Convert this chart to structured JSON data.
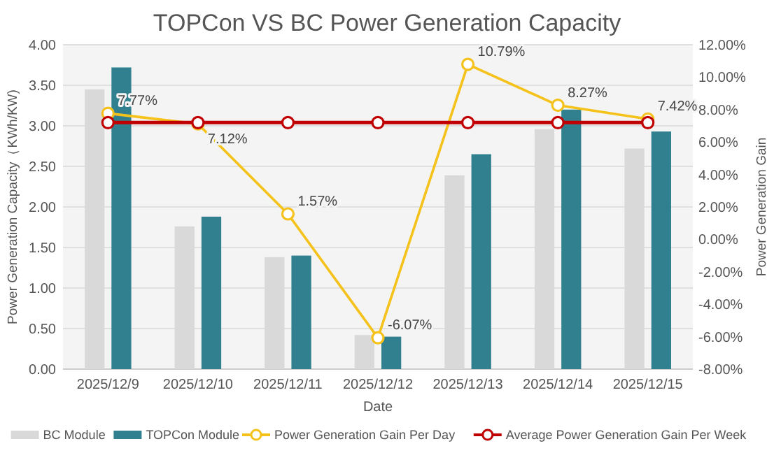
{
  "chart_data": {
    "type": "bar",
    "title": "TOPCon VS BC Power Generation Capacity",
    "xlabel": "Date",
    "ylabel": "Power Generation Capacity（KWh/KW)",
    "y2label": "Power Generation Gain",
    "categories": [
      "2025/12/9",
      "2025/12/10",
      "2025/12/11",
      "2025/12/12",
      "2025/12/13",
      "2025/12/14",
      "2025/12/15"
    ],
    "series": [
      {
        "name": "BC Module",
        "color": "#d9d9d9",
        "values": [
          3.45,
          1.76,
          1.38,
          0.42,
          2.39,
          2.96,
          2.72
        ]
      },
      {
        "name": "TOPCon Module",
        "color": "#31808f",
        "values": [
          3.72,
          1.88,
          1.4,
          0.4,
          2.65,
          3.2,
          2.93
        ]
      },
      {
        "name": "Power Generation Gain Per Day",
        "type": "line",
        "axis": "y2",
        "color": "#f5c21b",
        "values": [
          7.77,
          7.12,
          1.57,
          -6.07,
          10.79,
          8.27,
          7.42
        ],
        "value_labels": [
          "7.77%",
          "7.12%",
          "1.57%",
          "-6.07%",
          "10.79%",
          "8.27%",
          "7.42%"
        ]
      },
      {
        "name": "Average Power Generation Gain Per Week",
        "type": "line",
        "axis": "y2",
        "color": "#c00000",
        "values": [
          7.2,
          7.2,
          7.2,
          7.2,
          7.2,
          7.2,
          7.2
        ]
      }
    ],
    "ylim": [
      0,
      4
    ],
    "yticks": [
      {
        "value": 0,
        "label": "0.00"
      },
      {
        "value": 0.5,
        "label": "0.50"
      },
      {
        "value": 1,
        "label": "1.00"
      },
      {
        "value": 1.5,
        "label": "1.50"
      },
      {
        "value": 2,
        "label": "2.00"
      },
      {
        "value": 2.5,
        "label": "2.50"
      },
      {
        "value": 3,
        "label": "3.00"
      },
      {
        "value": 3.5,
        "label": "3.50"
      },
      {
        "value": 4,
        "label": "4.00"
      }
    ],
    "y2lim": [
      -8,
      12
    ],
    "y2ticks": [
      {
        "value": -8,
        "label": "-8.00%"
      },
      {
        "value": -6,
        "label": "-6.00%"
      },
      {
        "value": -4,
        "label": "-4.00%"
      },
      {
        "value": -2,
        "label": "-2.00%"
      },
      {
        "value": 0,
        "label": "0.00%"
      },
      {
        "value": 2,
        "label": "2.00%"
      },
      {
        "value": 4,
        "label": "4.00%"
      },
      {
        "value": 6,
        "label": "6.00%"
      },
      {
        "value": 8,
        "label": "8.00%"
      },
      {
        "value": 10,
        "label": "10.00%"
      },
      {
        "value": 12,
        "label": "12.00%"
      }
    ],
    "grid": "y",
    "legend": "bottom",
    "marker": "circle",
    "line_style": "solid"
  }
}
